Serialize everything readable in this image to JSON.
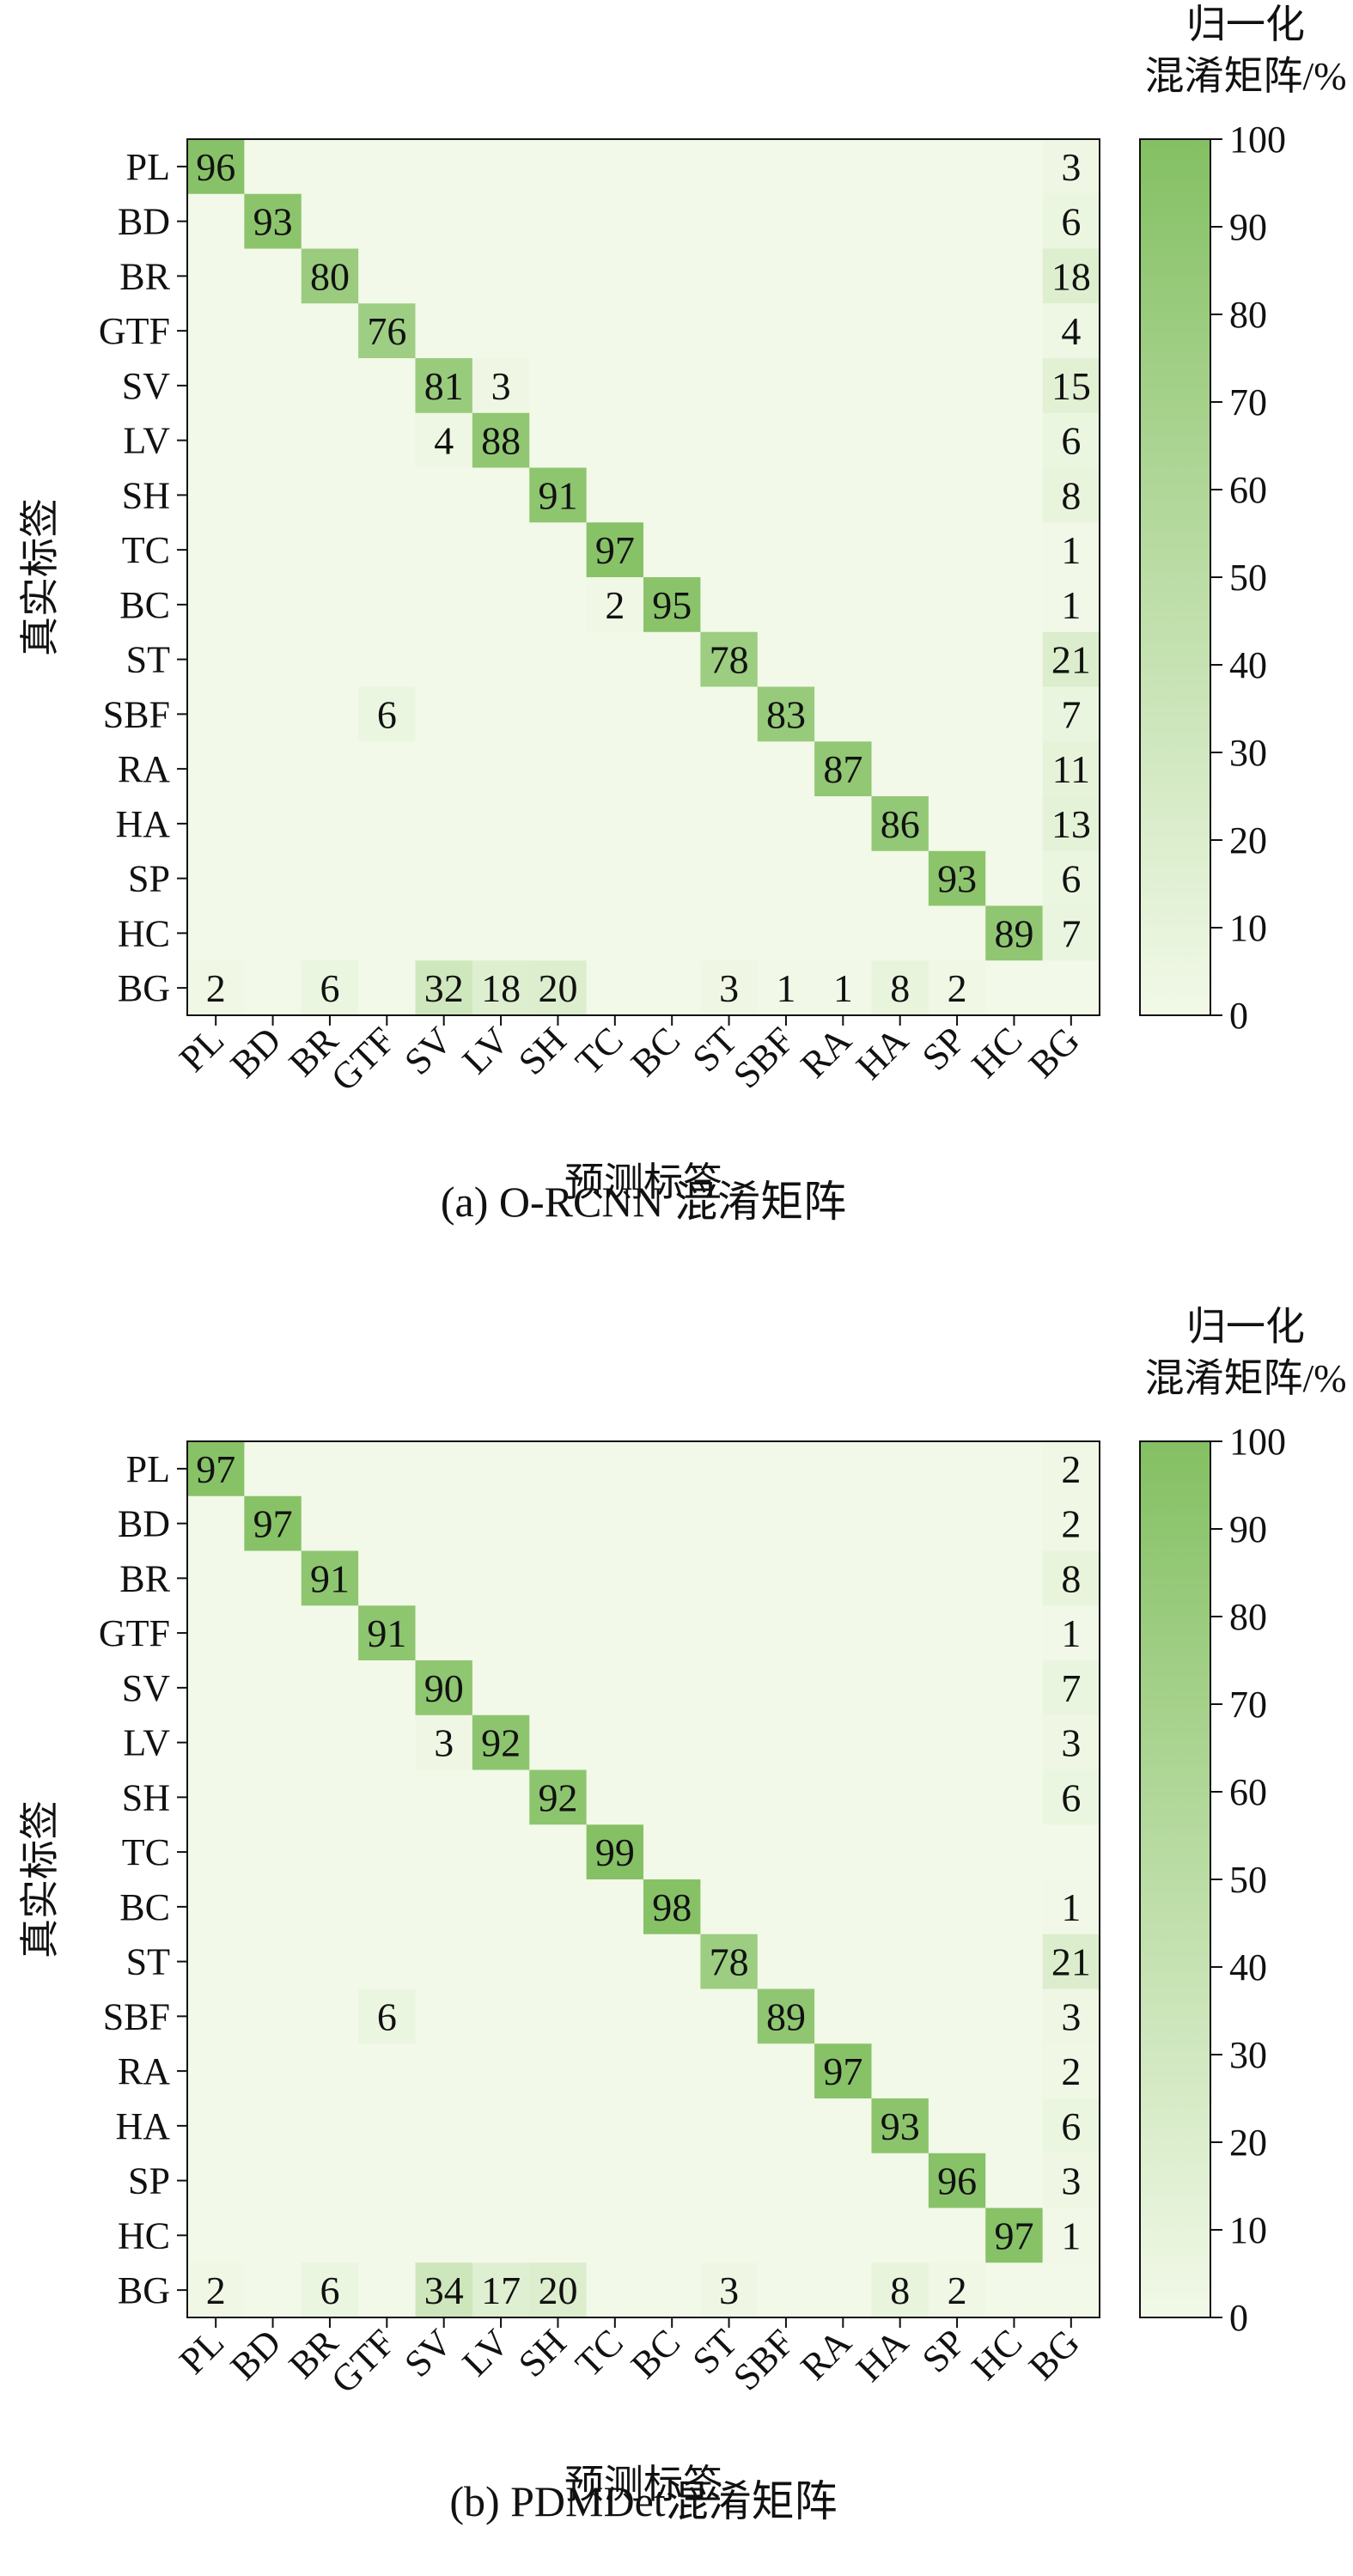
{
  "chart_data": [
    {
      "type": "heatmap",
      "caption": "(a) O-RCNN 混淆矩阵",
      "xlabel": "预测标签",
      "ylabel": "真实标签",
      "colorbar_title": [
        "归一化",
        "混淆矩阵/%"
      ],
      "colorbar_ticks": [
        0,
        10,
        20,
        30,
        40,
        50,
        60,
        70,
        80,
        90,
        100
      ],
      "colorbar_range": [
        0,
        100
      ],
      "colormap": [
        "#f2f9e8",
        "#84c063"
      ],
      "labels": [
        "PL",
        "BD",
        "BR",
        "GTF",
        "SV",
        "LV",
        "SH",
        "TC",
        "BC",
        "ST",
        "SBF",
        "RA",
        "HA",
        "SP",
        "HC",
        "BG"
      ],
      "values": [
        [
          96,
          0,
          0,
          0,
          0,
          0,
          0,
          0,
          0,
          0,
          0,
          0,
          0,
          0,
          0,
          3
        ],
        [
          0,
          93,
          0,
          0,
          0,
          0,
          0,
          0,
          0,
          0,
          0,
          0,
          0,
          0,
          0,
          6
        ],
        [
          0,
          0,
          80,
          0,
          0,
          0,
          0,
          0,
          0,
          0,
          0,
          0,
          0,
          0,
          0,
          18
        ],
        [
          0,
          0,
          0,
          76,
          0,
          0,
          0,
          0,
          0,
          0,
          0,
          0,
          0,
          0,
          0,
          4
        ],
        [
          0,
          0,
          0,
          0,
          81,
          3,
          0,
          0,
          0,
          0,
          0,
          0,
          0,
          0,
          0,
          15
        ],
        [
          0,
          0,
          0,
          0,
          4,
          88,
          0,
          0,
          0,
          0,
          0,
          0,
          0,
          0,
          0,
          6
        ],
        [
          0,
          0,
          0,
          0,
          0,
          0,
          91,
          0,
          0,
          0,
          0,
          0,
          0,
          0,
          0,
          8
        ],
        [
          0,
          0,
          0,
          0,
          0,
          0,
          0,
          97,
          0,
          0,
          0,
          0,
          0,
          0,
          0,
          1
        ],
        [
          0,
          0,
          0,
          0,
          0,
          0,
          0,
          2,
          95,
          0,
          0,
          0,
          0,
          0,
          0,
          1
        ],
        [
          0,
          0,
          0,
          0,
          0,
          0,
          0,
          0,
          0,
          78,
          0,
          0,
          0,
          0,
          0,
          21
        ],
        [
          0,
          0,
          0,
          6,
          0,
          0,
          0,
          0,
          0,
          0,
          83,
          0,
          0,
          0,
          0,
          7
        ],
        [
          0,
          0,
          0,
          0,
          0,
          0,
          0,
          0,
          0,
          0,
          0,
          87,
          0,
          0,
          0,
          11
        ],
        [
          0,
          0,
          0,
          0,
          0,
          0,
          0,
          0,
          0,
          0,
          0,
          0,
          86,
          0,
          0,
          13
        ],
        [
          0,
          0,
          0,
          0,
          0,
          0,
          0,
          0,
          0,
          0,
          0,
          0,
          0,
          93,
          0,
          6
        ],
        [
          0,
          0,
          0,
          0,
          0,
          0,
          0,
          0,
          0,
          0,
          0,
          0,
          0,
          0,
          89,
          7
        ],
        [
          2,
          0,
          6,
          0,
          32,
          18,
          20,
          0,
          0,
          3,
          1,
          1,
          8,
          2,
          0,
          0
        ]
      ]
    },
    {
      "type": "heatmap",
      "caption": "(b) PDMDet混淆矩阵",
      "xlabel": "预测标签",
      "ylabel": "真实标签",
      "colorbar_title": [
        "归一化",
        "混淆矩阵/%"
      ],
      "colorbar_ticks": [
        0,
        10,
        20,
        30,
        40,
        50,
        60,
        70,
        80,
        90,
        100
      ],
      "colorbar_range": [
        0,
        100
      ],
      "colormap": [
        "#f2f9e8",
        "#84c063"
      ],
      "labels": [
        "PL",
        "BD",
        "BR",
        "GTF",
        "SV",
        "LV",
        "SH",
        "TC",
        "BC",
        "ST",
        "SBF",
        "RA",
        "HA",
        "SP",
        "HC",
        "BG"
      ],
      "values": [
        [
          97,
          0,
          0,
          0,
          0,
          0,
          0,
          0,
          0,
          0,
          0,
          0,
          0,
          0,
          0,
          2
        ],
        [
          0,
          97,
          0,
          0,
          0,
          0,
          0,
          0,
          0,
          0,
          0,
          0,
          0,
          0,
          0,
          2
        ],
        [
          0,
          0,
          91,
          0,
          0,
          0,
          0,
          0,
          0,
          0,
          0,
          0,
          0,
          0,
          0,
          8
        ],
        [
          0,
          0,
          0,
          91,
          0,
          0,
          0,
          0,
          0,
          0,
          0,
          0,
          0,
          0,
          0,
          1
        ],
        [
          0,
          0,
          0,
          0,
          90,
          0,
          0,
          0,
          0,
          0,
          0,
          0,
          0,
          0,
          0,
          7
        ],
        [
          0,
          0,
          0,
          0,
          3,
          92,
          0,
          0,
          0,
          0,
          0,
          0,
          0,
          0,
          0,
          3
        ],
        [
          0,
          0,
          0,
          0,
          0,
          0,
          92,
          0,
          0,
          0,
          0,
          0,
          0,
          0,
          0,
          6
        ],
        [
          0,
          0,
          0,
          0,
          0,
          0,
          0,
          99,
          0,
          0,
          0,
          0,
          0,
          0,
          0,
          0
        ],
        [
          0,
          0,
          0,
          0,
          0,
          0,
          0,
          0,
          98,
          0,
          0,
          0,
          0,
          0,
          0,
          1
        ],
        [
          0,
          0,
          0,
          0,
          0,
          0,
          0,
          0,
          0,
          78,
          0,
          0,
          0,
          0,
          0,
          21
        ],
        [
          0,
          0,
          0,
          6,
          0,
          0,
          0,
          0,
          0,
          0,
          89,
          0,
          0,
          0,
          0,
          3
        ],
        [
          0,
          0,
          0,
          0,
          0,
          0,
          0,
          0,
          0,
          0,
          0,
          97,
          0,
          0,
          0,
          2
        ],
        [
          0,
          0,
          0,
          0,
          0,
          0,
          0,
          0,
          0,
          0,
          0,
          0,
          93,
          0,
          0,
          6
        ],
        [
          0,
          0,
          0,
          0,
          0,
          0,
          0,
          0,
          0,
          0,
          0,
          0,
          0,
          96,
          0,
          3
        ],
        [
          0,
          0,
          0,
          0,
          0,
          0,
          0,
          0,
          0,
          0,
          0,
          0,
          0,
          0,
          97,
          1
        ],
        [
          2,
          0,
          6,
          0,
          34,
          17,
          20,
          0,
          0,
          3,
          0,
          0,
          8,
          2,
          0,
          0
        ]
      ]
    }
  ]
}
